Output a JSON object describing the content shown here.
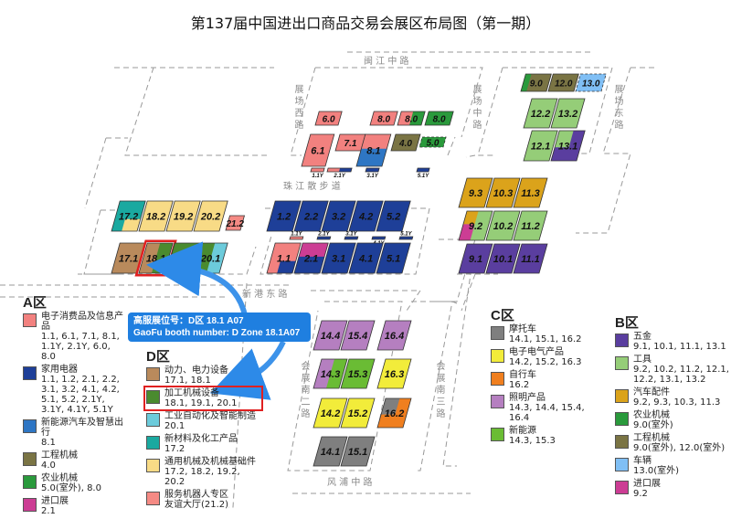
{
  "title": "第137届中国进出口商品交易会展区布局图（第一期）",
  "roads": {
    "minjiang": "闽 江 中 路",
    "west": "展场西路",
    "middle": "展场中路",
    "east": "展场东路",
    "zhujiang": "珠 江 散 步 道",
    "xingang": "新 港 东 路",
    "south2": "会展南二路",
    "south3": "会展南三路",
    "fengpu": "风 浦 中 路"
  },
  "callout": {
    "line1": "高服展位号：D区 18.1 A07",
    "line2": "GaoFu booth number: D Zone 18.1A07"
  },
  "colors": {
    "a_elec": "#f2817f",
    "a_home": "#1e3f98",
    "a_nev": "#2e76c4",
    "a_eng": "#7a7444",
    "a_agri": "#2a9a3c",
    "a_import": "#cc3d94",
    "d_power": "#b98a5c",
    "d_machining": "#4a8b2f",
    "d_auto": "#6ccbdb",
    "d_material": "#1aa9a0",
    "d_general": "#f8db86",
    "d_robot": "#f58a84",
    "c_moto": "#7f7f7f",
    "c_elec": "#f2ec3a",
    "c_bike": "#f07f1f",
    "c_light": "#b57fc0",
    "c_newenergy": "#6abc34",
    "b_hardware": "#5a3e9f",
    "b_tools": "#95cd78",
    "b_parts": "#dba31b",
    "b_agri": "#2a9a3c",
    "b_eng": "#7a7444",
    "b_vehicle": "#80bff5",
    "b_import": "#cc3d94",
    "highlight": "#e02020",
    "callout": "#1f7fe0"
  },
  "booths": [
    {
      "id": "6.0",
      "label": "6.0",
      "colors": [
        "#f2817f"
      ]
    },
    {
      "id": "8.0a",
      "label": "8.0",
      "colors": [
        "#f2817f"
      ]
    },
    {
      "id": "8.0b",
      "label": "8.0",
      "colors": [
        "#f2817f",
        "#2a9a3c"
      ]
    },
    {
      "id": "8.0c",
      "label": "8.0",
      "colors": [
        "#2a9a3c"
      ]
    },
    {
      "id": "6.1",
      "label": "6.1",
      "colors": [
        "#f2817f"
      ]
    },
    {
      "id": "7.1",
      "label": "7.1",
      "colors": [
        "#f2817f"
      ]
    },
    {
      "id": "8.1",
      "label": "8.1",
      "colors": [
        "#f2817f",
        "#2e76c4"
      ]
    },
    {
      "id": "4.0",
      "label": "4.0",
      "colors": [
        "#7a7444"
      ]
    },
    {
      "id": "5.0",
      "label": "5.0",
      "colors": [
        "#2a9a3c"
      ]
    },
    {
      "id": "1.1Y",
      "label": "1.1Y",
      "colors": [
        "#f2817f"
      ]
    },
    {
      "id": "2.1Y",
      "label": "2.1Y",
      "colors": [
        "#f2817f",
        "#1e3f98"
      ]
    },
    {
      "id": "3.1Y",
      "label": "3.1Y",
      "colors": [
        "#1e3f98"
      ]
    },
    {
      "id": "5.1Y",
      "label": "5.1Y",
      "colors": [
        "#1e3f98"
      ]
    },
    {
      "id": "1.2",
      "label": "1.2",
      "colors": [
        "#1e3f98"
      ]
    },
    {
      "id": "2.2",
      "label": "2.2",
      "colors": [
        "#1e3f98"
      ]
    },
    {
      "id": "3.2",
      "label": "3.2",
      "colors": [
        "#1e3f98"
      ]
    },
    {
      "id": "4.2",
      "label": "4.2",
      "colors": [
        "#1e3f98"
      ]
    },
    {
      "id": "5.2",
      "label": "5.2",
      "colors": [
        "#1e3f98"
      ]
    },
    {
      "id": "1.1Yb",
      "label": "1.1Y",
      "colors": [
        "#f2817f"
      ]
    },
    {
      "id": "2.1Yb",
      "label": "2.1Y",
      "colors": [
        "#1e3f98"
      ]
    },
    {
      "id": "3.1Yb",
      "label": "3.1Y",
      "colors": [
        "#1e3f98"
      ]
    },
    {
      "id": "4.1Y",
      "label": "4.1Y",
      "colors": [
        "#1e3f98"
      ]
    },
    {
      "id": "5.1Yb",
      "label": "5.1Y",
      "colors": [
        "#1e3f98"
      ]
    },
    {
      "id": "1.1",
      "label": "1.1",
      "colors": [
        "#f2817f",
        "#1e3f98"
      ]
    },
    {
      "id": "2.1",
      "label": "2.1",
      "colors": [
        "#cc3d94",
        "#1e3f98"
      ]
    },
    {
      "id": "3.1",
      "label": "3.1",
      "colors": [
        "#1e3f98"
      ]
    },
    {
      "id": "4.1",
      "label": "4.1",
      "colors": [
        "#1e3f98"
      ]
    },
    {
      "id": "5.1",
      "label": "5.1",
      "colors": [
        "#1e3f98"
      ]
    },
    {
      "id": "17.2",
      "label": "17.2",
      "colors": [
        "#1aa9a0",
        "#f8db86"
      ]
    },
    {
      "id": "18.2",
      "label": "18.2",
      "colors": [
        "#f8db86"
      ]
    },
    {
      "id": "19.2",
      "label": "19.2",
      "colors": [
        "#f8db86"
      ]
    },
    {
      "id": "20.2",
      "label": "20.2",
      "colors": [
        "#f8db86"
      ]
    },
    {
      "id": "21.2",
      "label": "21.2",
      "colors": [
        "#f58a84"
      ]
    },
    {
      "id": "17.1",
      "label": "17.1",
      "colors": [
        "#b98a5c"
      ]
    },
    {
      "id": "18.1",
      "label": "18.1",
      "colors": [
        "#b98a5c",
        "#4a8b2f"
      ],
      "highlighted": true
    },
    {
      "id": "19.1",
      "label": "19.1",
      "colors": [
        "#4a8b2f"
      ]
    },
    {
      "id": "20.1",
      "label": "20.1",
      "colors": [
        "#4a8b2f",
        "#6ccbdb"
      ]
    },
    {
      "id": "9.0",
      "label": "9.0",
      "colors": [
        "#7a7444",
        "#2a9a3c"
      ]
    },
    {
      "id": "12.0",
      "label": "12.0",
      "colors": [
        "#7a7444"
      ]
    },
    {
      "id": "13.0",
      "label": "13.0",
      "colors": [
        "#80bff5"
      ]
    },
    {
      "id": "12.2",
      "label": "12.2",
      "colors": [
        "#95cd78"
      ]
    },
    {
      "id": "13.2",
      "label": "13.2",
      "colors": [
        "#95cd78"
      ]
    },
    {
      "id": "12.1",
      "label": "12.1",
      "colors": [
        "#95cd78"
      ]
    },
    {
      "id": "13.1",
      "label": "13.1",
      "colors": [
        "#5a3e9f",
        "#95cd78"
      ]
    },
    {
      "id": "9.3",
      "label": "9.3",
      "colors": [
        "#dba31b"
      ]
    },
    {
      "id": "10.3",
      "label": "10.3",
      "colors": [
        "#dba31b"
      ]
    },
    {
      "id": "11.3",
      "label": "11.3",
      "colors": [
        "#dba31b"
      ]
    },
    {
      "id": "9.2",
      "label": "9.2",
      "colors": [
        "#95cd78",
        "#dba31b",
        "#cc3d94"
      ]
    },
    {
      "id": "10.2",
      "label": "10.2",
      "colors": [
        "#95cd78"
      ]
    },
    {
      "id": "11.2",
      "label": "11.2",
      "colors": [
        "#95cd78"
      ]
    },
    {
      "id": "9.1",
      "label": "9.1",
      "colors": [
        "#5a3e9f"
      ]
    },
    {
      "id": "10.1",
      "label": "10.1",
      "colors": [
        "#5a3e9f"
      ]
    },
    {
      "id": "11.1",
      "label": "11.1",
      "colors": [
        "#5a3e9f"
      ]
    },
    {
      "id": "14.4",
      "label": "14.4",
      "colors": [
        "#b57fc0"
      ]
    },
    {
      "id": "15.4",
      "label": "15.4",
      "colors": [
        "#b57fc0"
      ]
    },
    {
      "id": "16.4",
      "label": "16.4",
      "colors": [
        "#b57fc0"
      ]
    },
    {
      "id": "14.3",
      "label": "14.3",
      "colors": [
        "#b57fc0",
        "#6abc34"
      ]
    },
    {
      "id": "15.3",
      "label": "15.3",
      "colors": [
        "#6abc34"
      ]
    },
    {
      "id": "16.3",
      "label": "16.3",
      "colors": [
        "#f2ec3a"
      ]
    },
    {
      "id": "14.2",
      "label": "14.2",
      "colors": [
        "#f2ec3a"
      ]
    },
    {
      "id": "15.2",
      "label": "15.2",
      "colors": [
        "#f2ec3a"
      ]
    },
    {
      "id": "16.2",
      "label": "16.2",
      "colors": [
        "#f07f1f",
        "#7f7f7f"
      ]
    },
    {
      "id": "14.1",
      "label": "14.1",
      "colors": [
        "#7f7f7f"
      ]
    },
    {
      "id": "15.1",
      "label": "15.1",
      "colors": [
        "#7f7f7f"
      ]
    }
  ],
  "legend_a": {
    "title": "A区",
    "items": [
      {
        "name": "电子消费品及信息产品",
        "halls": "1.1, 6.1, 7.1, 8.1, 1.1Y, 2.1Y, 6.0, 8.0",
        "color": "#f2817f"
      },
      {
        "name": "家用电器",
        "halls": "1.1, 1.2, 2.1, 2.2, 3.1, 3.2, 4.1, 4.2, 5.1, 5.2, 2.1Y, 3.1Y, 4.1Y, 5.1Y",
        "color": "#1e3f98"
      },
      {
        "name": "新能源汽车及智慧出行",
        "halls": "8.1",
        "color": "#2e76c4"
      },
      {
        "name": "工程机械",
        "halls": "4.0",
        "color": "#7a7444"
      },
      {
        "name": "农业机械",
        "halls": "5.0(室外), 8.0",
        "color": "#2a9a3c"
      },
      {
        "name": "进口展",
        "halls": "2.1",
        "color": "#cc3d94"
      }
    ]
  },
  "legend_d": {
    "title": "D区",
    "items": [
      {
        "name": "动力、电力设备",
        "halls": "17.1, 18.1",
        "color": "#b98a5c"
      },
      {
        "name": "加工机械设备",
        "halls": "18.1, 19.1, 20.1",
        "color": "#4a8b2f",
        "highlighted": true
      },
      {
        "name": "工业自动化及智能制造",
        "halls": "20.1",
        "color": "#6ccbdb"
      },
      {
        "name": "新材料及化工产品",
        "halls": "17.2",
        "color": "#1aa9a0"
      },
      {
        "name": "通用机械及机械基础件",
        "halls": "17.2, 18.2, 19.2, 20.2",
        "color": "#f8db86"
      },
      {
        "name": "服务机器人专区",
        "halls": "友谊大厅(21.2)",
        "color": "#f58a84"
      }
    ]
  },
  "legend_c": {
    "title": "C区",
    "items": [
      {
        "name": "摩托车",
        "halls": "14.1, 15.1, 16.2",
        "color": "#7f7f7f"
      },
      {
        "name": "电子电气产品",
        "halls": "14.2, 15.2, 16.3",
        "color": "#f2ec3a"
      },
      {
        "name": "自行车",
        "halls": "16.2",
        "color": "#f07f1f"
      },
      {
        "name": "照明产品",
        "halls": "14.3, 14.4, 15.4, 16.4",
        "color": "#b57fc0"
      },
      {
        "name": "新能源",
        "halls": "14.3, 15.3",
        "color": "#6abc34"
      }
    ]
  },
  "legend_b": {
    "title": "B区",
    "items": [
      {
        "name": "五金",
        "halls": "9.1, 10.1, 11.1, 13.1",
        "color": "#5a3e9f"
      },
      {
        "name": "工具",
        "halls": "9.2, 10.2, 11.2, 12.1, 12.2, 13.1, 13.2",
        "color": "#95cd78"
      },
      {
        "name": "汽车配件",
        "halls": "9.2, 9.3, 10.3, 11.3",
        "color": "#dba31b"
      },
      {
        "name": "农业机械",
        "halls": "9.0(室外)",
        "color": "#2a9a3c"
      },
      {
        "name": "工程机械",
        "halls": "9.0(室外), 12.0(室外)",
        "color": "#7a7444"
      },
      {
        "name": "车辆",
        "halls": "13.0(室外)",
        "color": "#80bff5"
      },
      {
        "name": "进口展",
        "halls": "9.2",
        "color": "#cc3d94"
      }
    ]
  }
}
